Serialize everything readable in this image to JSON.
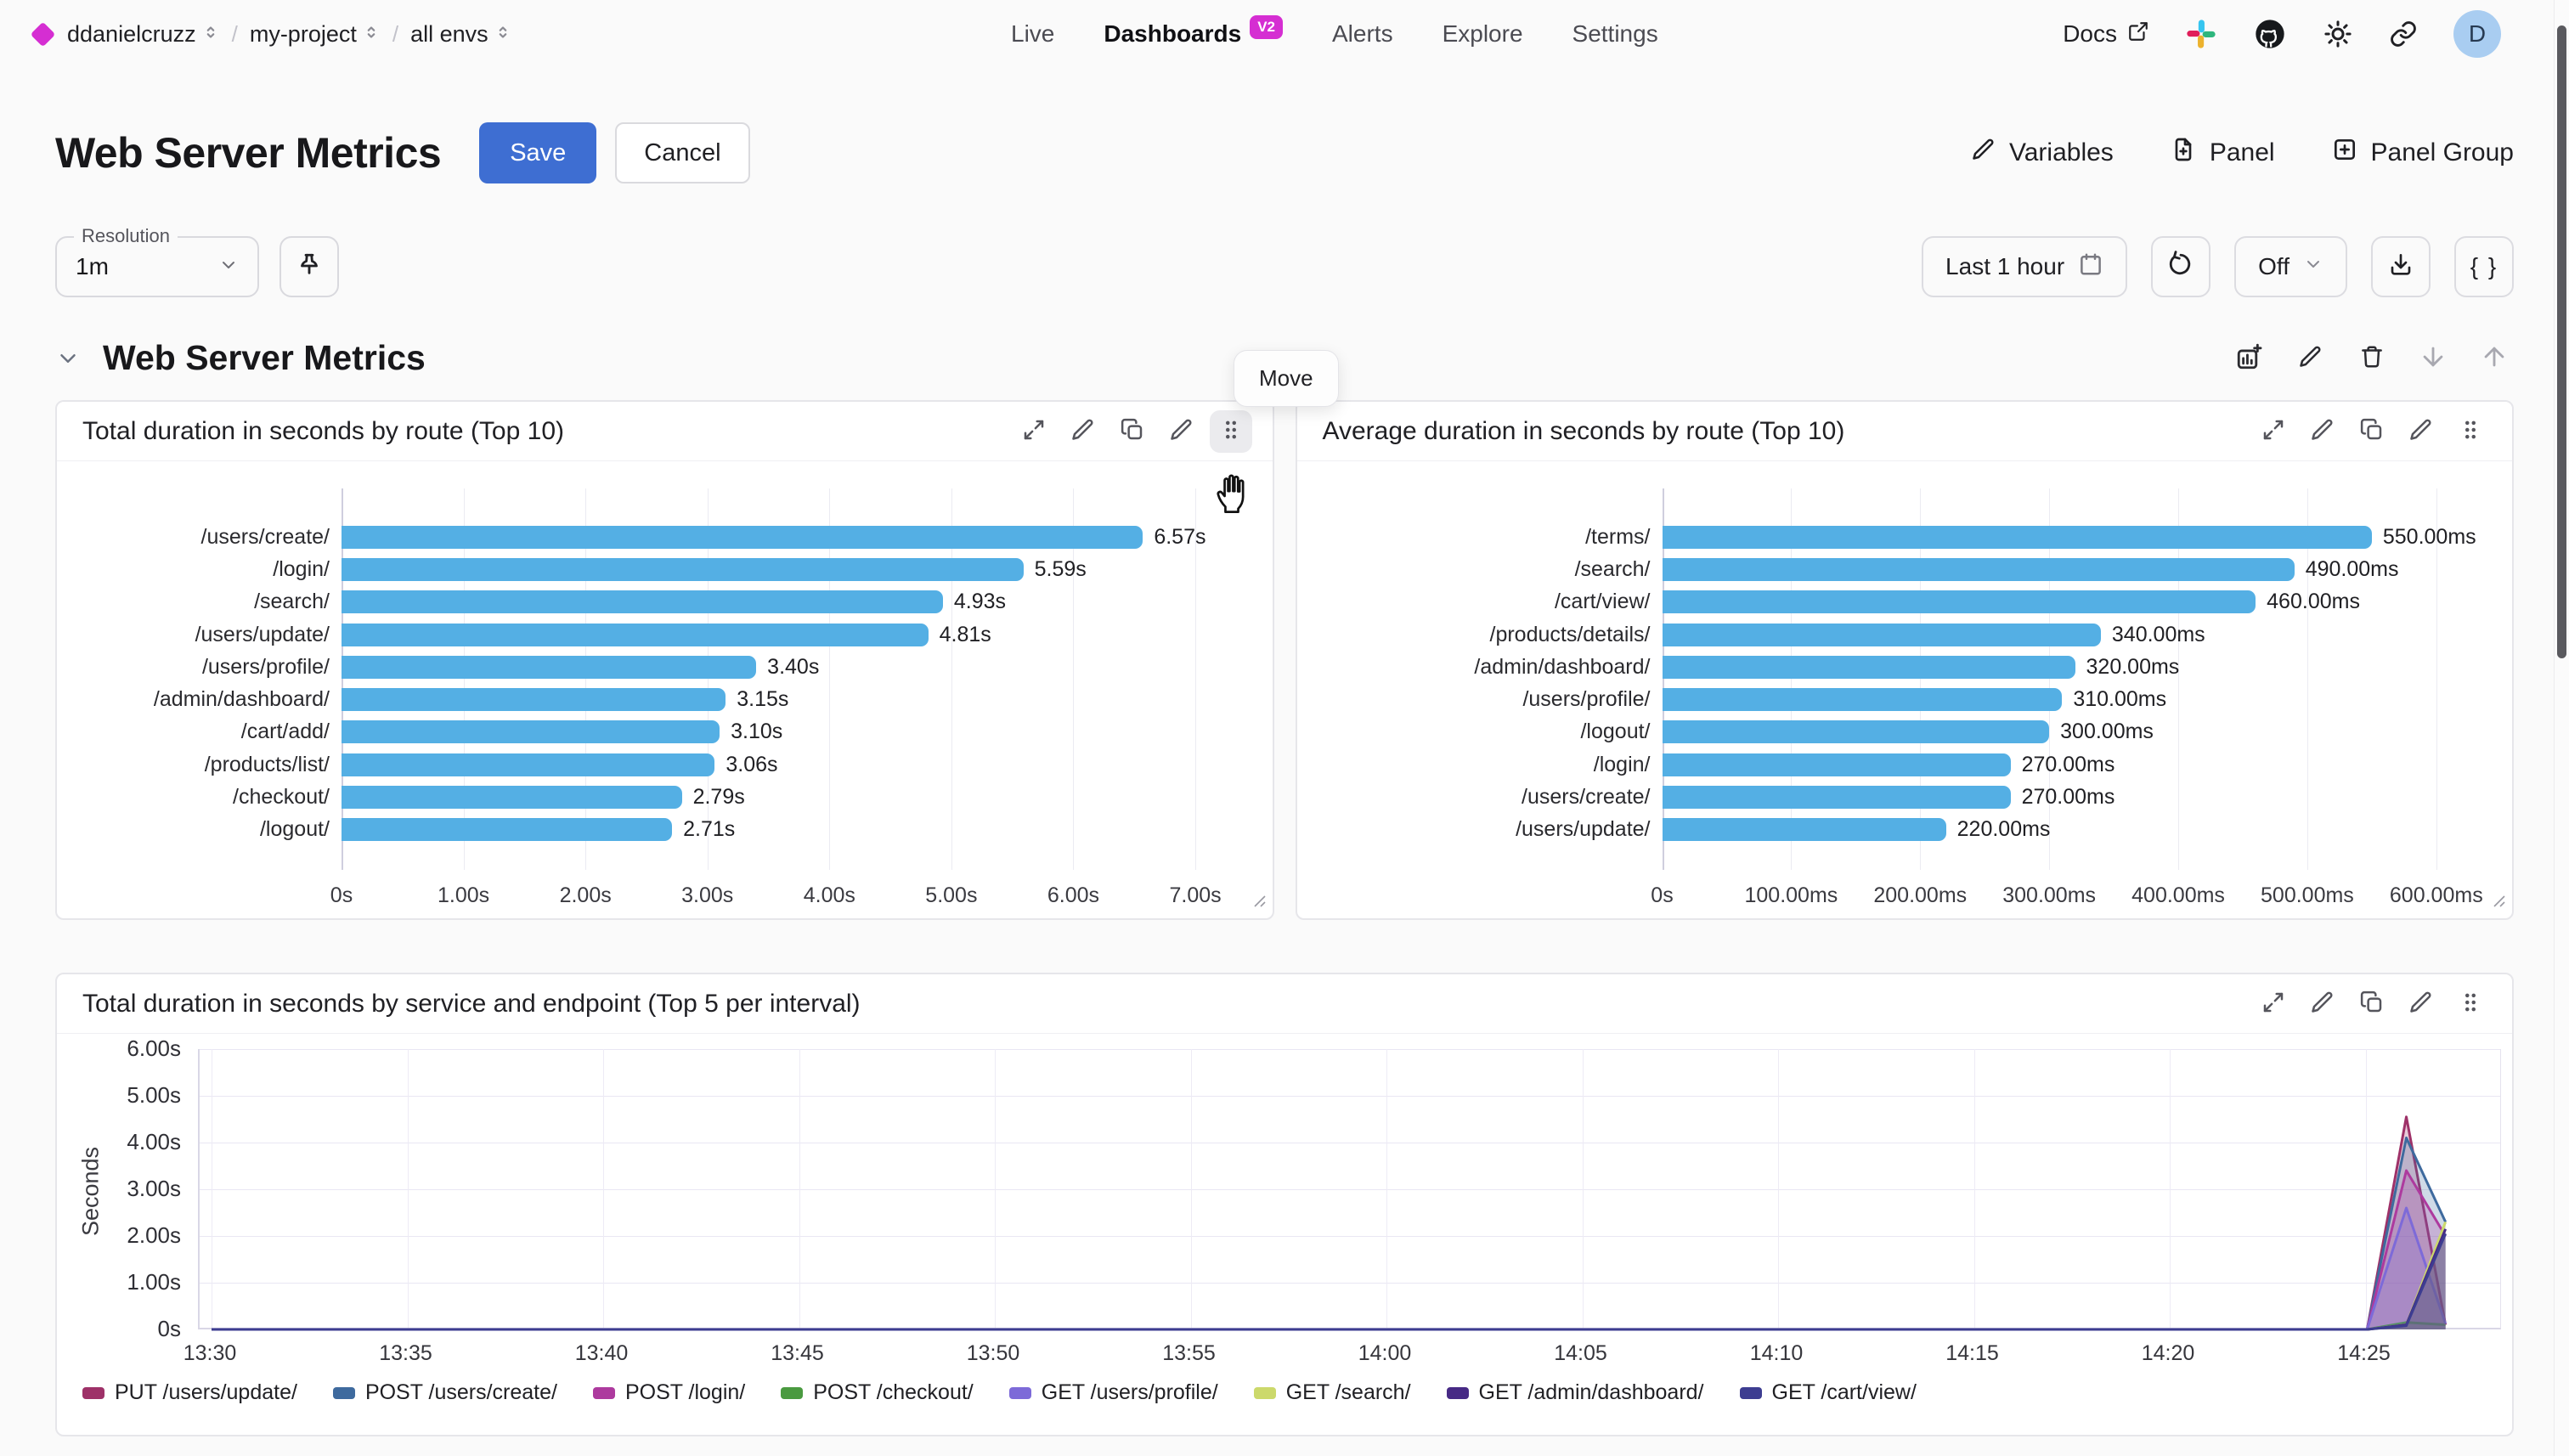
{
  "colors": {
    "accent_blue": "#3e6ed2",
    "badge_magenta": "#d52ed2",
    "bar_blue": "#54afe4",
    "avatar_bg": "#a9cdf1"
  },
  "nav": {
    "logo_icon": "diamond-logo",
    "breadcrumbs": [
      "ddanielcruzz",
      "my-project",
      "all envs"
    ],
    "tabs": [
      {
        "label": "Live",
        "active": false
      },
      {
        "label": "Dashboards",
        "active": true,
        "badge": "V2"
      },
      {
        "label": "Alerts",
        "active": false
      },
      {
        "label": "Explore",
        "active": false
      },
      {
        "label": "Settings",
        "active": false
      }
    ],
    "docs_label": "Docs",
    "right_icons": [
      "external-link-icon",
      "slack-icon",
      "github-icon",
      "theme-icon",
      "link-icon"
    ],
    "avatar_initial": "D"
  },
  "header": {
    "title": "Web Server Metrics",
    "save_label": "Save",
    "cancel_label": "Cancel",
    "actions": [
      {
        "label": "Variables",
        "icon": "edit"
      },
      {
        "label": "Panel",
        "icon": "filePlus"
      },
      {
        "label": "Panel Group",
        "icon": "squarePlus"
      }
    ]
  },
  "toolbar": {
    "resolution_label": "Resolution",
    "resolution_value": "1m",
    "pin_icon": "pin-icon",
    "time_range_label": "Last 1 hour",
    "refresh_icon": "refresh-icon",
    "auto_refresh_label": "Off",
    "download_icon": "download-icon",
    "braces_label": "{ }"
  },
  "section": {
    "title": "Web Server Metrics",
    "actions": [
      {
        "icon": "chartAdd",
        "name": "add-panel",
        "disabled": false
      },
      {
        "icon": "edit",
        "name": "edit-section",
        "disabled": false
      },
      {
        "icon": "trash",
        "name": "delete-section",
        "disabled": false
      },
      {
        "icon": "arrowDown",
        "name": "move-section-down",
        "disabled": true
      },
      {
        "icon": "arrowUp",
        "name": "move-section-up",
        "disabled": true
      }
    ],
    "move_tooltip": "Move"
  },
  "panels": [
    {
      "actions": [
        "expand",
        "edit",
        "duplicate",
        "delete",
        "drag"
      ],
      "drag_active": true
    },
    {
      "actions": [
        "expand",
        "edit",
        "duplicate",
        "delete",
        "drag"
      ],
      "drag_active": false
    },
    {
      "actions": [
        "expand",
        "edit",
        "duplicate",
        "delete",
        "drag"
      ],
      "drag_active": false
    }
  ],
  "chart_data": [
    {
      "type": "bar",
      "title": "Total duration in seconds by route (Top 10)",
      "orientation": "horizontal",
      "unit": "seconds",
      "categories": [
        "/users/create/",
        "/login/",
        "/search/",
        "/users/update/",
        "/users/profile/",
        "/admin/dashboard/",
        "/cart/add/",
        "/products/list/",
        "/checkout/",
        "/logout/"
      ],
      "values": [
        6.57,
        5.59,
        4.93,
        4.81,
        3.4,
        3.15,
        3.1,
        3.06,
        2.79,
        2.71
      ],
      "value_labels": [
        "6.57s",
        "5.59s",
        "4.93s",
        "4.81s",
        "3.40s",
        "3.15s",
        "3.10s",
        "3.06s",
        "2.79s",
        "2.71s"
      ],
      "x_ticks": {
        "values": [
          0,
          1,
          2,
          3,
          4,
          5,
          6,
          7
        ],
        "labels": [
          "0s",
          "1.00s",
          "2.00s",
          "3.00s",
          "4.00s",
          "5.00s",
          "6.00s",
          "7.00s"
        ]
      },
      "axis_max": 7.4,
      "bar_color": "#54afe4",
      "grid": true
    },
    {
      "type": "bar",
      "title": "Average duration in seconds by route (Top 10)",
      "orientation": "horizontal",
      "unit": "milliseconds",
      "categories": [
        "/terms/",
        "/search/",
        "/cart/view/",
        "/products/details/",
        "/admin/dashboard/",
        "/users/profile/",
        "/logout/",
        "/login/",
        "/users/create/",
        "/users/update/"
      ],
      "values": [
        550,
        490,
        460,
        340,
        320,
        310,
        300,
        270,
        270,
        220
      ],
      "value_labels": [
        "550.00ms",
        "490.00ms",
        "460.00ms",
        "340.00ms",
        "320.00ms",
        "310.00ms",
        "300.00ms",
        "270.00ms",
        "270.00ms",
        "220.00ms"
      ],
      "x_ticks": {
        "values": [
          0,
          100,
          200,
          300,
          400,
          500,
          600
        ],
        "labels": [
          "0s",
          "100.00ms",
          "200.00ms",
          "300.00ms",
          "400.00ms",
          "500.00ms",
          "600.00ms"
        ]
      },
      "axis_max": 637,
      "bar_color": "#54afe4",
      "grid": true
    },
    {
      "type": "line",
      "title": "Total duration in seconds by service and endpoint (Top 5 per interval)",
      "ylabel": "Seconds",
      "ylim": [
        0,
        6
      ],
      "y_ticks": {
        "values": [
          0,
          1,
          2,
          3,
          4,
          5,
          6
        ],
        "labels": [
          "0s",
          "1.00s",
          "2.00s",
          "3.00s",
          "4.00s",
          "5.00s",
          "6.00s"
        ]
      },
      "x_ticks": {
        "minutes": [
          0,
          5,
          10,
          15,
          20,
          25,
          30,
          35,
          40,
          45,
          50,
          55
        ],
        "labels": [
          "13:30",
          "13:35",
          "13:40",
          "13:45",
          "13:50",
          "13:55",
          "14:00",
          "14:05",
          "14:10",
          "14:15",
          "14:20",
          "14:25"
        ]
      },
      "x_range_minutes": [
        0,
        58.7
      ],
      "grid": true,
      "legend_position": "bottom",
      "series": [
        {
          "name": "PUT /users/update/",
          "color": "#9e3168",
          "points": [
            [
              0,
              0
            ],
            [
              55,
              0
            ],
            [
              56,
              4.55
            ],
            [
              57,
              0.1
            ]
          ]
        },
        {
          "name": "POST /users/create/",
          "color": "#3e6a9e",
          "points": [
            [
              0,
              0
            ],
            [
              55,
              0
            ],
            [
              56,
              4.1
            ],
            [
              57,
              2.3
            ]
          ]
        },
        {
          "name": "POST /login/",
          "color": "#ad3a9e",
          "points": [
            [
              0,
              0
            ],
            [
              55,
              0
            ],
            [
              56,
              3.4
            ],
            [
              57,
              2.0
            ]
          ]
        },
        {
          "name": "POST /checkout/",
          "color": "#4a9a40",
          "points": [
            [
              0,
              0
            ],
            [
              55,
              0
            ],
            [
              56,
              0.15
            ],
            [
              57,
              0.1
            ]
          ]
        },
        {
          "name": "GET /users/profile/",
          "color": "#7d6ad8",
          "points": [
            [
              0,
              0
            ],
            [
              55,
              0
            ],
            [
              56,
              2.6
            ],
            [
              57,
              0.12
            ]
          ]
        },
        {
          "name": "GET /search/",
          "color": "#ccd96b",
          "points": [
            [
              0,
              0
            ],
            [
              55,
              0
            ],
            [
              56,
              0.1
            ],
            [
              57,
              2.3
            ]
          ]
        },
        {
          "name": "GET /admin/dashboard/",
          "color": "#472a85",
          "points": [
            [
              0,
              0
            ],
            [
              55,
              0
            ],
            [
              56,
              0.1
            ],
            [
              57,
              2.15
            ]
          ]
        },
        {
          "name": "GET /cart/view/",
          "color": "#3d3d91",
          "points": [
            [
              0,
              0
            ],
            [
              55,
              0
            ],
            [
              56,
              0.08
            ],
            [
              57,
              2.05
            ]
          ]
        }
      ]
    }
  ]
}
